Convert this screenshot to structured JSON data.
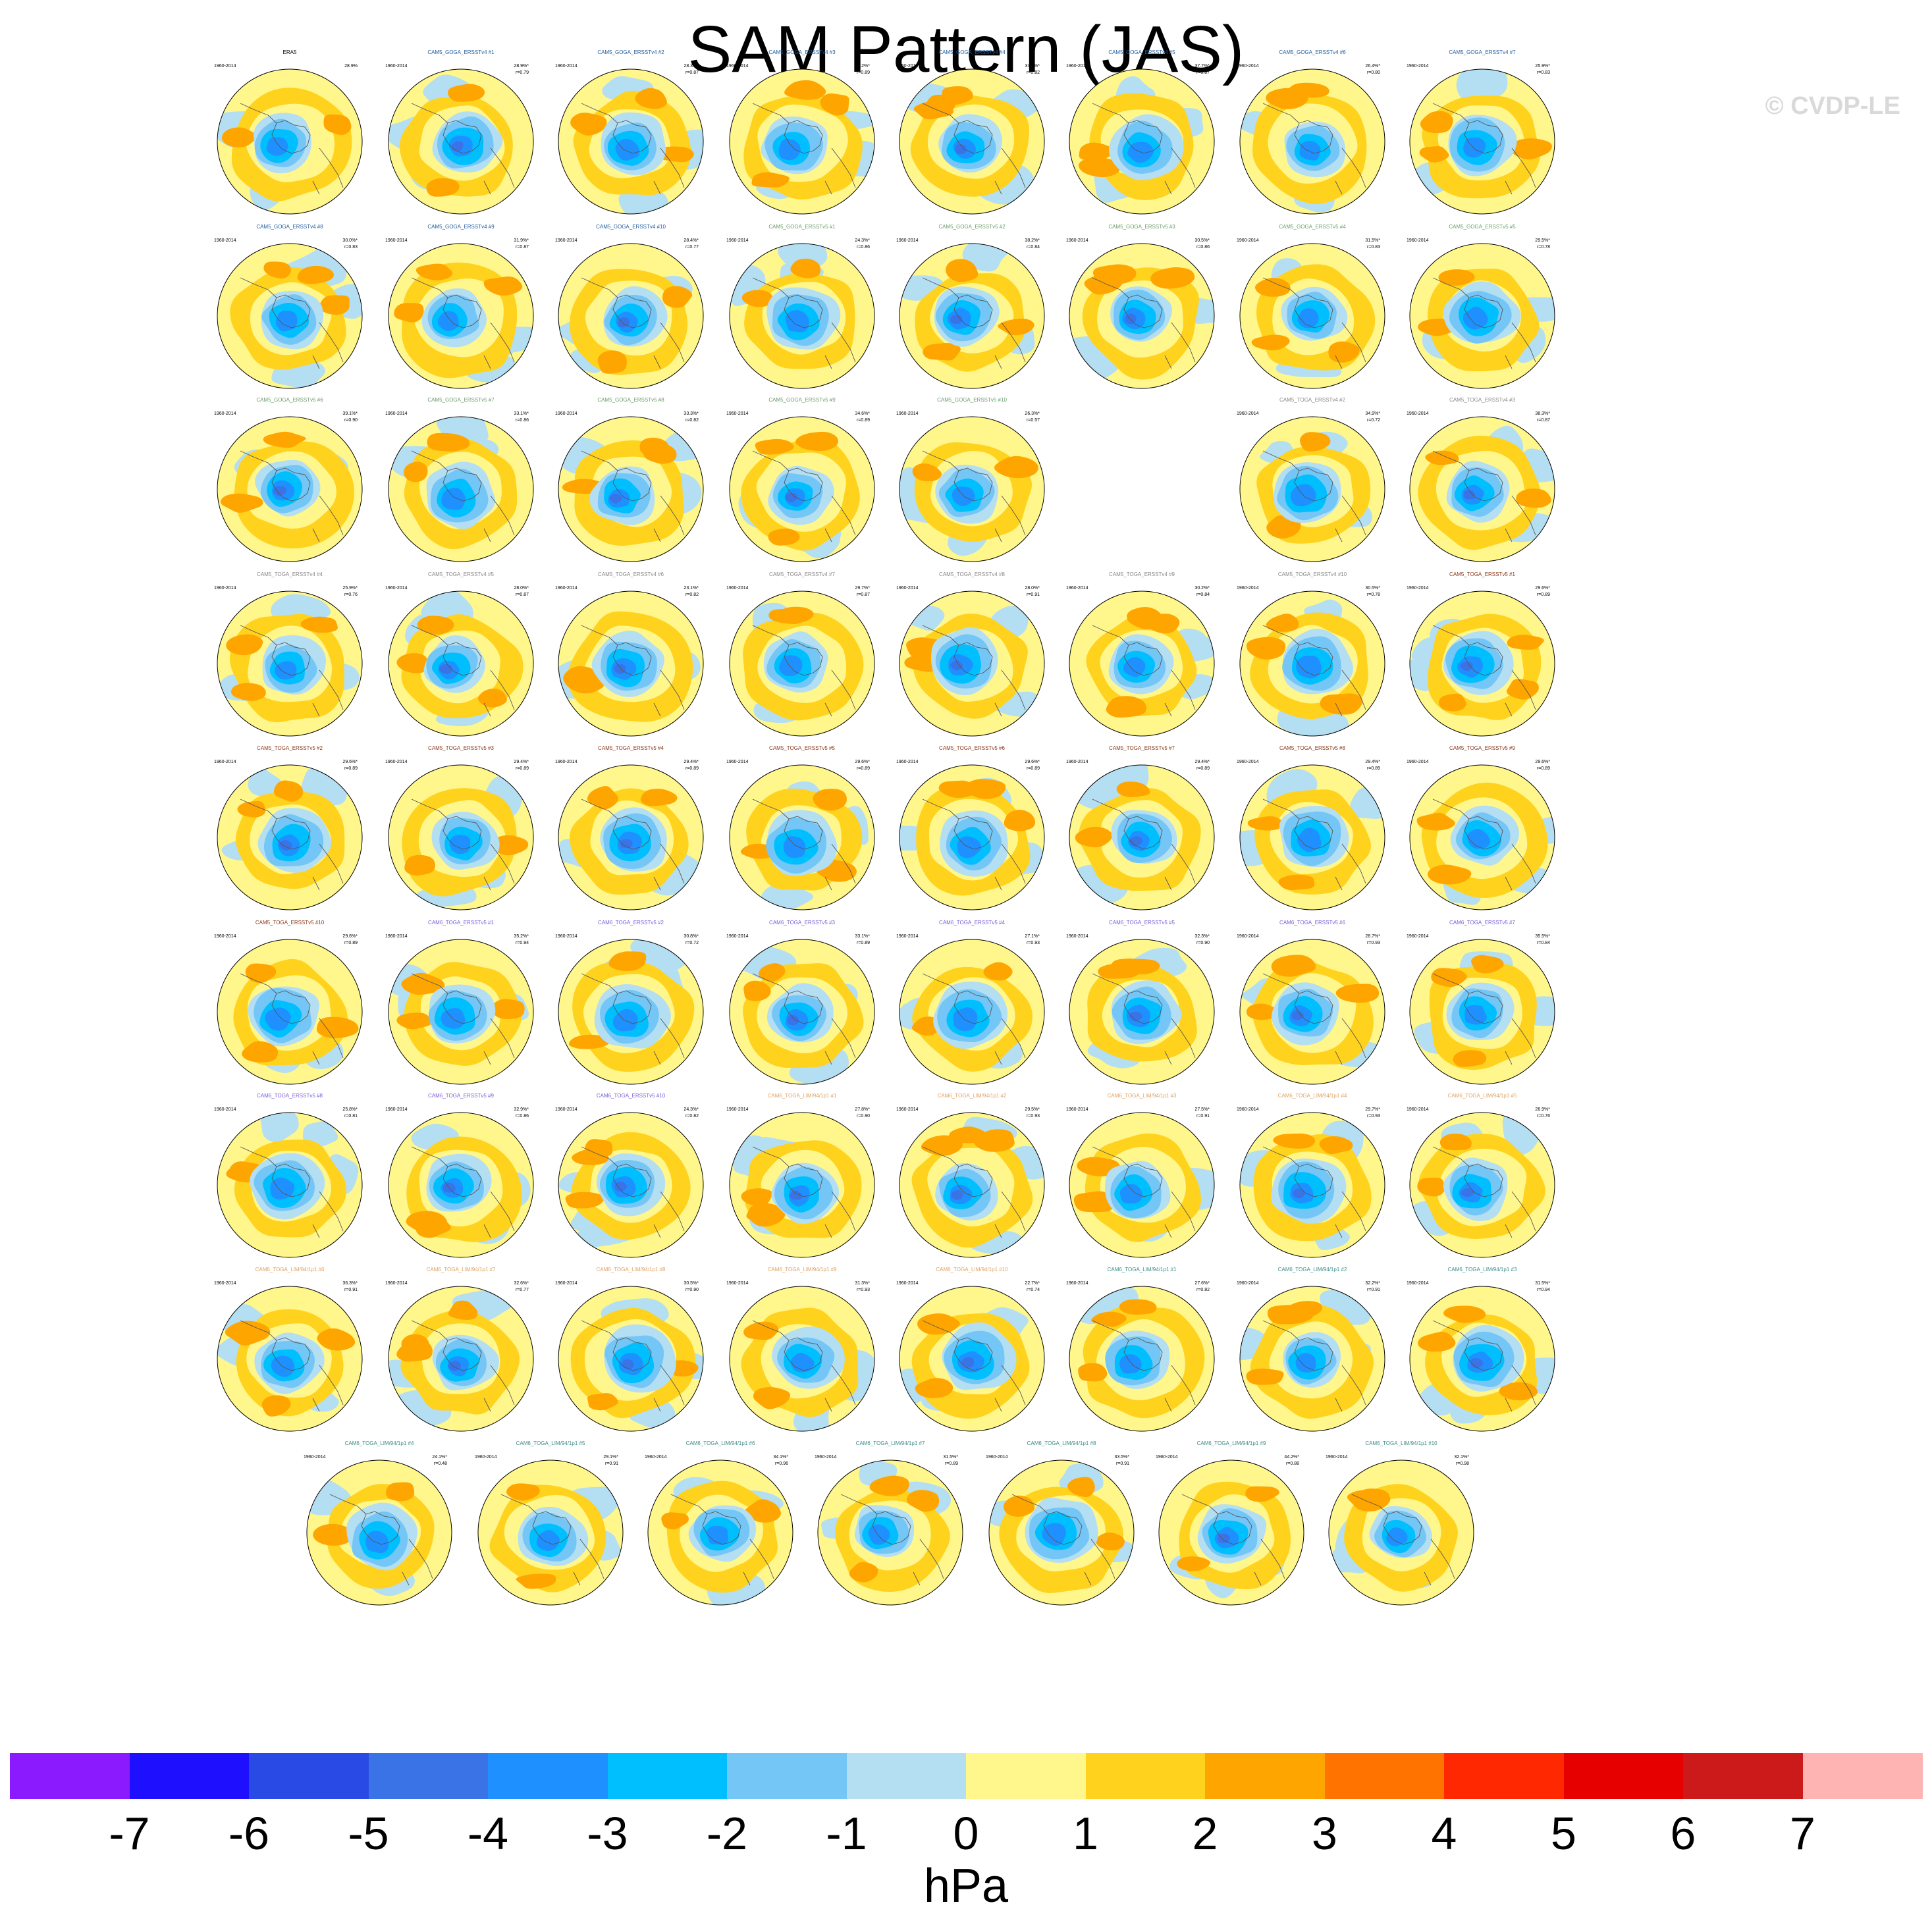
{
  "title": "SAM Pattern (JAS)",
  "credit": "© CVDP-LE",
  "colorbar": {
    "units": "hPa",
    "colors": [
      "#8c1aff",
      "#1e0fff",
      "#2a4ae6",
      "#3a73e6",
      "#1e90ff",
      "#00bfff",
      "#73c6f5",
      "#b4def2",
      "#fff78c",
      "#ffd21e",
      "#ffa500",
      "#ff7300",
      "#ff2800",
      "#e60000",
      "#cc1a1a",
      "#ffb4b4"
    ],
    "ticks": [
      "-7",
      "-6",
      "-5",
      "-4",
      "-3",
      "-2",
      "-1",
      "0",
      "1",
      "2",
      "3",
      "4",
      "5",
      "6",
      "7"
    ]
  },
  "panel_years": "1960-2014",
  "panels": [
    {
      "name": "ERA5",
      "pct": "28.9%",
      "r": "",
      "color": "#000000",
      "row": 0,
      "col": 0,
      "v": 1
    },
    {
      "name": "CAM5_GOGA_ERSSTv4 #1",
      "pct": "28.9%*",
      "r": "r=0.79",
      "color": "#1f5b9c",
      "row": 0,
      "col": 1,
      "v": 2
    },
    {
      "name": "CAM5_GOGA_ERSSTv4 #2",
      "pct": "28.3%*",
      "r": "r=0.87",
      "color": "#1f5b9c",
      "row": 0,
      "col": 2,
      "v": 3
    },
    {
      "name": "CAM5_GOGA_ERSSTv4 #3",
      "pct": "30.2%*",
      "r": "r=0.89",
      "color": "#1f5b9c",
      "row": 0,
      "col": 3,
      "v": 4
    },
    {
      "name": "CAM5_GOGA_ERSSTv4 #4",
      "pct": "33.8%*",
      "r": "r=0.82",
      "color": "#1f5b9c",
      "row": 0,
      "col": 4,
      "v": 5
    },
    {
      "name": "CAM5_GOGA_ERSSTv4 #5",
      "pct": "37.7%*",
      "r": "r=0.87",
      "color": "#1f5b9c",
      "row": 0,
      "col": 5,
      "v": 6
    },
    {
      "name": "CAM5_GOGA_ERSSTv4 #6",
      "pct": "26.4%*",
      "r": "r=0.80",
      "color": "#1f5b9c",
      "row": 0,
      "col": 6,
      "v": 7
    },
    {
      "name": "CAM5_GOGA_ERSSTv4 #7",
      "pct": "25.9%*",
      "r": "r=0.83",
      "color": "#1f5b9c",
      "row": 0,
      "col": 7,
      "v": 8
    },
    {
      "name": "CAM5_GOGA_ERSSTv4 #8",
      "pct": "30.0%*",
      "r": "r=0.83",
      "color": "#1f5b9c",
      "row": 1,
      "col": 0,
      "v": 9
    },
    {
      "name": "CAM5_GOGA_ERSSTv4 #9",
      "pct": "31.9%*",
      "r": "r=0.87",
      "color": "#1f5b9c",
      "row": 1,
      "col": 1,
      "v": 10
    },
    {
      "name": "CAM5_GOGA_ERSSTv4 #10",
      "pct": "28.4%*",
      "r": "r=0.77",
      "color": "#1f5b9c",
      "row": 1,
      "col": 2,
      "v": 11
    },
    {
      "name": "CAM5_GOGA_ERSSTv5 #1",
      "pct": "24.3%*",
      "r": "r=0.86",
      "color": "#6a9c6a",
      "row": 1,
      "col": 3,
      "v": 12
    },
    {
      "name": "CAM5_GOGA_ERSSTv5 #2",
      "pct": "38.2%*",
      "r": "r=0.84",
      "color": "#6a9c6a",
      "row": 1,
      "col": 4,
      "v": 13
    },
    {
      "name": "CAM5_GOGA_ERSSTv5 #3",
      "pct": "30.5%*",
      "r": "r=0.86",
      "color": "#6a9c6a",
      "row": 1,
      "col": 5,
      "v": 14
    },
    {
      "name": "CAM5_GOGA_ERSSTv5 #4",
      "pct": "31.5%*",
      "r": "r=0.83",
      "color": "#6a9c6a",
      "row": 1,
      "col": 6,
      "v": 15
    },
    {
      "name": "CAM5_GOGA_ERSSTv5 #5",
      "pct": "29.5%*",
      "r": "r=0.78",
      "color": "#6a9c6a",
      "row": 1,
      "col": 7,
      "v": 16
    },
    {
      "name": "CAM5_GOGA_ERSSTv5 #6",
      "pct": "39.1%*",
      "r": "r=0.90",
      "color": "#6a9c6a",
      "row": 2,
      "col": 0,
      "v": 17
    },
    {
      "name": "CAM5_GOGA_ERSSTv5 #7",
      "pct": "33.1%*",
      "r": "r=0.86",
      "color": "#6a9c6a",
      "row": 2,
      "col": 1,
      "v": 18
    },
    {
      "name": "CAM5_GOGA_ERSSTv5 #8",
      "pct": "33.3%*",
      "r": "r=0.82",
      "color": "#6a9c6a",
      "row": 2,
      "col": 2,
      "v": 19
    },
    {
      "name": "CAM5_GOGA_ERSSTv5 #9",
      "pct": "34.6%*",
      "r": "r=0.89",
      "color": "#6a9c6a",
      "row": 2,
      "col": 3,
      "v": 20
    },
    {
      "name": "CAM5_GOGA_ERSSTv5 #10",
      "pct": "26.3%*",
      "r": "r=0.57",
      "color": "#6a9c6a",
      "row": 2,
      "col": 4,
      "v": 21
    },
    {
      "name": "CAM5_TOGA_ERSSTv4 #2",
      "pct": "34.9%*",
      "r": "r=0.72",
      "color": "#888888",
      "row": 2,
      "col": 6,
      "v": 22
    },
    {
      "name": "CAM5_TOGA_ERSSTv4 #3",
      "pct": "38.3%*",
      "r": "r=0.87",
      "color": "#888888",
      "row": 2,
      "col": 7,
      "v": 23
    },
    {
      "name": "CAM5_TOGA_ERSSTv4 #4",
      "pct": "25.9%*",
      "r": "r=0.76",
      "color": "#888888",
      "row": 3,
      "col": 0,
      "v": 24
    },
    {
      "name": "CAM5_TOGA_ERSSTv4 #5",
      "pct": "28.0%*",
      "r": "r=0.87",
      "color": "#888888",
      "row": 3,
      "col": 1,
      "v": 25
    },
    {
      "name": "CAM5_TOGA_ERSSTv4 #6",
      "pct": "23.1%*",
      "r": "r=0.82",
      "color": "#888888",
      "row": 3,
      "col": 2,
      "v": 26
    },
    {
      "name": "CAM5_TOGA_ERSSTv4 #7",
      "pct": "29.7%*",
      "r": "r=0.87",
      "color": "#888888",
      "row": 3,
      "col": 3,
      "v": 27
    },
    {
      "name": "CAM5_TOGA_ERSSTv4 #8",
      "pct": "28.0%*",
      "r": "r=0.91",
      "color": "#888888",
      "row": 3,
      "col": 4,
      "v": 28
    },
    {
      "name": "CAM5_TOGA_ERSSTv4 #9",
      "pct": "30.2%*",
      "r": "r=0.84",
      "color": "#888888",
      "row": 3,
      "col": 5,
      "v": 29
    },
    {
      "name": "CAM5_TOGA_ERSSTv4 #10",
      "pct": "30.5%*",
      "r": "r=0.78",
      "color": "#888888",
      "row": 3,
      "col": 6,
      "v": 30
    },
    {
      "name": "CAM5_TOGA_ERSSTv5 #1",
      "pct": "29.6%*",
      "r": "r=0.89",
      "color": "#8b3a1a",
      "row": 3,
      "col": 7,
      "v": 31
    },
    {
      "name": "CAM5_TOGA_ERSSTv5 #2",
      "pct": "29.6%*",
      "r": "r=0.89",
      "color": "#8b3a1a",
      "row": 4,
      "col": 0,
      "v": 32
    },
    {
      "name": "CAM5_TOGA_ERSSTv5 #3",
      "pct": "29.4%*",
      "r": "r=0.89",
      "color": "#8b3a1a",
      "row": 4,
      "col": 1,
      "v": 33
    },
    {
      "name": "CAM5_TOGA_ERSSTv5 #4",
      "pct": "29.4%*",
      "r": "r=0.89",
      "color": "#8b3a1a",
      "row": 4,
      "col": 2,
      "v": 34
    },
    {
      "name": "CAM5_TOGA_ERSSTv5 #5",
      "pct": "29.6%*",
      "r": "r=0.89",
      "color": "#8b3a1a",
      "row": 4,
      "col": 3,
      "v": 35
    },
    {
      "name": "CAM5_TOGA_ERSSTv5 #6",
      "pct": "29.6%*",
      "r": "r=0.89",
      "color": "#8b3a1a",
      "row": 4,
      "col": 4,
      "v": 36
    },
    {
      "name": "CAM5_TOGA_ERSSTv5 #7",
      "pct": "29.4%*",
      "r": "r=0.89",
      "color": "#8b3a1a",
      "row": 4,
      "col": 5,
      "v": 37
    },
    {
      "name": "CAM5_TOGA_ERSSTv5 #8",
      "pct": "29.4%*",
      "r": "r=0.89",
      "color": "#8b3a1a",
      "row": 4,
      "col": 6,
      "v": 38
    },
    {
      "name": "CAM5_TOGA_ERSSTv5 #9",
      "pct": "29.6%*",
      "r": "r=0.89",
      "color": "#8b3a1a",
      "row": 4,
      "col": 7,
      "v": 39
    },
    {
      "name": "CAM5_TOGA_ERSSTv5 #10",
      "pct": "29.6%*",
      "r": "r=0.89",
      "color": "#8b3a1a",
      "row": 5,
      "col": 0,
      "v": 40
    },
    {
      "name": "CAM6_TOGA_ERSSTv5 #1",
      "pct": "35.2%*",
      "r": "r=0.94",
      "color": "#7a5ad6",
      "row": 5,
      "col": 1,
      "v": 41
    },
    {
      "name": "CAM6_TOGA_ERSSTv5 #2",
      "pct": "30.8%*",
      "r": "r=0.72",
      "color": "#7a5ad6",
      "row": 5,
      "col": 2,
      "v": 42
    },
    {
      "name": "CAM6_TOGA_ERSSTv5 #3",
      "pct": "33.1%*",
      "r": "r=0.89",
      "color": "#7a5ad6",
      "row": 5,
      "col": 3,
      "v": 43
    },
    {
      "name": "CAM6_TOGA_ERSSTv5 #4",
      "pct": "27.1%*",
      "r": "r=0.93",
      "color": "#7a5ad6",
      "row": 5,
      "col": 4,
      "v": 44
    },
    {
      "name": "CAM6_TOGA_ERSSTv5 #5",
      "pct": "32.3%*",
      "r": "r=0.90",
      "color": "#7a5ad6",
      "row": 5,
      "col": 5,
      "v": 45
    },
    {
      "name": "CAM6_TOGA_ERSSTv5 #6",
      "pct": "28.7%*",
      "r": "r=0.93",
      "color": "#7a5ad6",
      "row": 5,
      "col": 6,
      "v": 46
    },
    {
      "name": "CAM6_TOGA_ERSSTv5 #7",
      "pct": "35.5%*",
      "r": "r=0.84",
      "color": "#7a5ad6",
      "row": 5,
      "col": 7,
      "v": 47
    },
    {
      "name": "CAM6_TOGA_ERSSTv5 #8",
      "pct": "25.8%*",
      "r": "r=0.81",
      "color": "#7a5ad6",
      "row": 6,
      "col": 0,
      "v": 48
    },
    {
      "name": "CAM6_TOGA_ERSSTv5 #9",
      "pct": "32.9%*",
      "r": "r=0.86",
      "color": "#7a5ad6",
      "row": 6,
      "col": 1,
      "v": 49
    },
    {
      "name": "CAM6_TOGA_ERSSTv5 #10",
      "pct": "24.3%*",
      "r": "r=0.82",
      "color": "#7a5ad6",
      "row": 6,
      "col": 2,
      "v": 50
    },
    {
      "name": "CAM6_TOGA_LIM/94/1p1 #1",
      "pct": "27.8%*",
      "r": "r=0.90",
      "color": "#e0a060",
      "row": 6,
      "col": 3,
      "v": 51
    },
    {
      "name": "CAM6_TOGA_LIM/94/1p1 #2",
      "pct": "29.5%*",
      "r": "r=0.93",
      "color": "#e0a060",
      "row": 6,
      "col": 4,
      "v": 52
    },
    {
      "name": "CAM6_TOGA_LIM/94/1p1 #3",
      "pct": "27.5%*",
      "r": "r=0.91",
      "color": "#e0a060",
      "row": 6,
      "col": 5,
      "v": 53
    },
    {
      "name": "CAM6_TOGA_LIM/94/1p1 #4",
      "pct": "29.7%*",
      "r": "r=0.93",
      "color": "#e0a060",
      "row": 6,
      "col": 6,
      "v": 54
    },
    {
      "name": "CAM6_TOGA_LIM/94/1p1 #5",
      "pct": "26.9%*",
      "r": "r=0.76",
      "color": "#e0a060",
      "row": 6,
      "col": 7,
      "v": 55
    },
    {
      "name": "CAM6_TOGA_LIM/94/1p1 #6",
      "pct": "36.3%*",
      "r": "r=0.91",
      "color": "#e0a060",
      "row": 7,
      "col": 0,
      "v": 56
    },
    {
      "name": "CAM6_TOGA_LIM/94/1p1 #7",
      "pct": "32.6%*",
      "r": "r=0.77",
      "color": "#e0a060",
      "row": 7,
      "col": 1,
      "v": 57
    },
    {
      "name": "CAM6_TOGA_LIM/94/1p1 #8",
      "pct": "30.5%*",
      "r": "r=0.90",
      "color": "#e0a060",
      "row": 7,
      "col": 2,
      "v": 58
    },
    {
      "name": "CAM6_TOGA_LIM/94/1p1 #9",
      "pct": "31.3%*",
      "r": "r=0.93",
      "color": "#e0a060",
      "row": 7,
      "col": 3,
      "v": 59
    },
    {
      "name": "CAM6_TOGA_LIM/94/1p1 #10",
      "pct": "22.7%*",
      "r": "r=0.74",
      "color": "#e0a060",
      "row": 7,
      "col": 4,
      "v": 60
    },
    {
      "name": "CAM6_TOGA_LIM/94/1p1 #1",
      "pct": "27.6%*",
      "r": "r=0.82",
      "color": "#3a8a8a",
      "row": 7,
      "col": 5,
      "v": 61
    },
    {
      "name": "CAM6_TOGA_LIM/94/1p1 #2",
      "pct": "32.2%*",
      "r": "r=0.91",
      "color": "#3a8a8a",
      "row": 7,
      "col": 6,
      "v": 62
    },
    {
      "name": "CAM6_TOGA_LIM/94/1p1 #3",
      "pct": "31.5%*",
      "r": "r=0.94",
      "color": "#3a8a8a",
      "row": 7,
      "col": 7,
      "v": 63
    },
    {
      "name": "CAM6_TOGA_LIM/94/1p1 #4",
      "pct": "24.1%*",
      "r": "r=0.48",
      "color": "#3a8a8a",
      "row": 8,
      "col": 0,
      "v": 64
    },
    {
      "name": "CAM6_TOGA_LIM/94/1p1 #5",
      "pct": "29.1%*",
      "r": "r=0.91",
      "color": "#3a8a8a",
      "row": 8,
      "col": 1,
      "v": 65
    },
    {
      "name": "CAM6_TOGA_LIM/94/1p1 #6",
      "pct": "34.1%*",
      "r": "r=0.96",
      "color": "#3a8a8a",
      "row": 8,
      "col": 2,
      "v": 66
    },
    {
      "name": "CAM6_TOGA_LIM/94/1p1 #7",
      "pct": "31.5%*",
      "r": "r=0.89",
      "color": "#3a8a8a",
      "row": 8,
      "col": 3,
      "v": 67
    },
    {
      "name": "CAM6_TOGA_LIM/94/1p1 #8",
      "pct": "33.5%*",
      "r": "r=0.91",
      "color": "#3a8a8a",
      "row": 8,
      "col": 4,
      "v": 68
    },
    {
      "name": "CAM6_TOGA_LIM/94/1p1 #9",
      "pct": "44.2%*",
      "r": "r=0.88",
      "color": "#3a8a8a",
      "row": 8,
      "col": 5,
      "v": 69
    },
    {
      "name": "CAM6_TOGA_LIM/94/1p1 #10",
      "pct": "32.1%*",
      "r": "r=0.98",
      "color": "#3a8a8a",
      "row": 8,
      "col": 6,
      "v": 70
    }
  ]
}
